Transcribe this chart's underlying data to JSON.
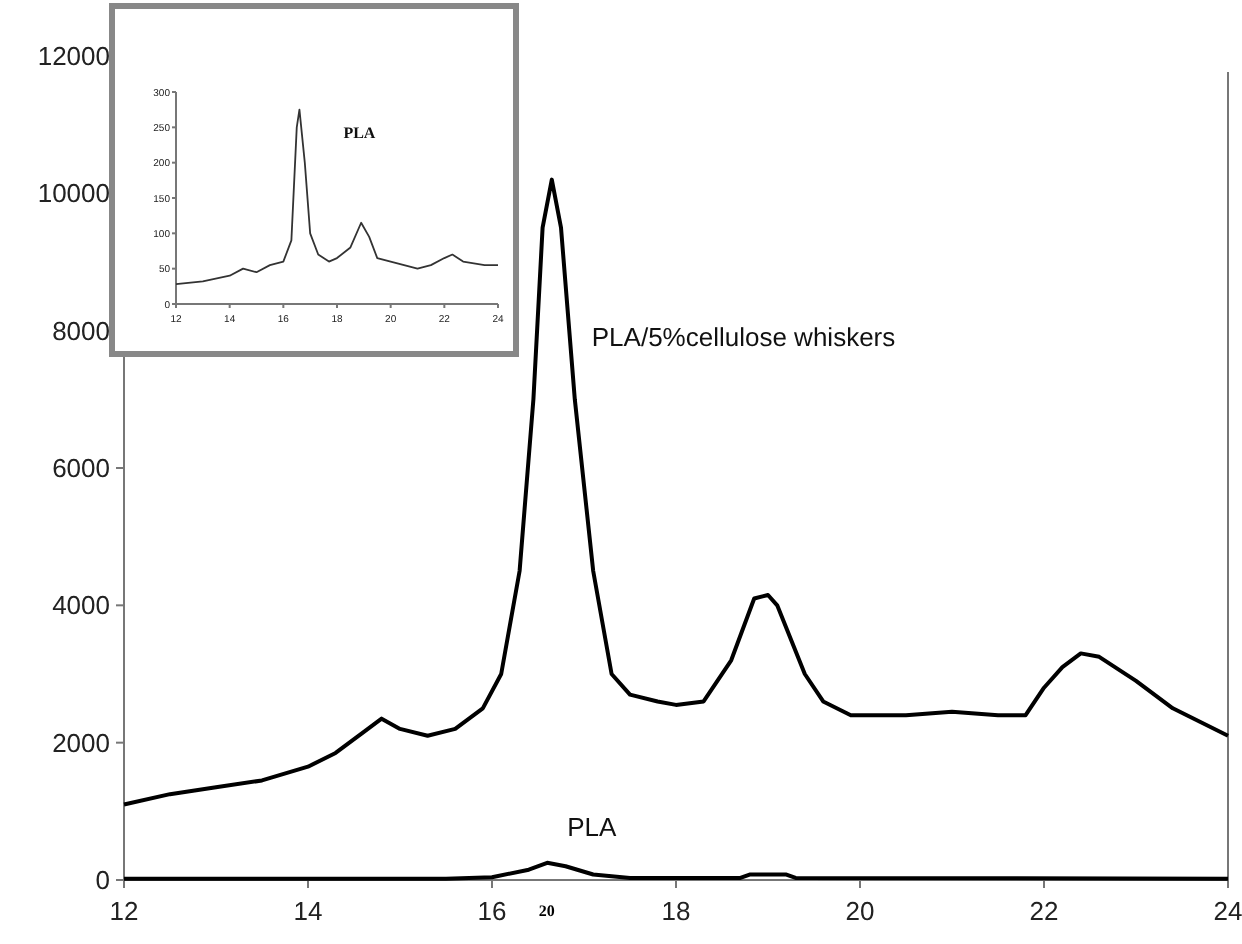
{
  "chart_data": [
    {
      "type": "line",
      "xlabel": "20",
      "xlim": [
        12,
        24
      ],
      "ylim": [
        0,
        12000
      ],
      "xticks": [
        12,
        14,
        16,
        18,
        20,
        22,
        24
      ],
      "yticks": [
        0,
        2000,
        4000,
        6000,
        8000,
        10000,
        12000
      ],
      "grid": false,
      "marker": "none",
      "line_style": "solid",
      "series": [
        {
          "name": "PLA/5%cellulose whiskers",
          "color": "#000000",
          "x": [
            12,
            12.5,
            13,
            13.5,
            14,
            14.3,
            14.6,
            14.8,
            15.0,
            15.3,
            15.6,
            15.9,
            16.1,
            16.3,
            16.45,
            16.55,
            16.65,
            16.75,
            16.9,
            17.1,
            17.3,
            17.5,
            17.8,
            18.0,
            18.3,
            18.6,
            18.85,
            19.0,
            19.1,
            19.4,
            19.6,
            19.9,
            20.5,
            21.0,
            21.5,
            21.8,
            22.0,
            22.2,
            22.4,
            22.6,
            23.0,
            23.4,
            23.7,
            24
          ],
          "values": [
            1100,
            1250,
            1350,
            1450,
            1650,
            1850,
            2150,
            2350,
            2200,
            2100,
            2200,
            2500,
            3000,
            4500,
            7000,
            9500,
            10200,
            9500,
            7000,
            4500,
            3000,
            2700,
            2600,
            2550,
            2600,
            3200,
            4100,
            4150,
            4000,
            3000,
            2600,
            2400,
            2400,
            2450,
            2400,
            2400,
            2800,
            3100,
            3300,
            3250,
            2900,
            2500,
            2300,
            2100
          ]
        },
        {
          "name": "PLA",
          "color": "#000000",
          "x": [
            12,
            15.5,
            16,
            16.4,
            16.6,
            16.8,
            17.1,
            17.5,
            18.7,
            18.8,
            19.2,
            19.3,
            24
          ],
          "values": [
            20,
            20,
            40,
            150,
            250,
            200,
            80,
            30,
            30,
            80,
            80,
            30,
            20
          ]
        }
      ]
    },
    {
      "type": "line",
      "xlim": [
        12,
        24
      ],
      "ylim": [
        0,
        300
      ],
      "xticks": [
        12,
        14,
        16,
        18,
        20,
        22,
        24
      ],
      "yticks": [
        0,
        50,
        100,
        150,
        200,
        250,
        300
      ],
      "grid": false,
      "marker": "none",
      "line_style": "solid",
      "series": [
        {
          "name": "PLA",
          "color": "#333333",
          "x": [
            12,
            13,
            14,
            14.5,
            15,
            15.5,
            16,
            16.3,
            16.5,
            16.6,
            16.8,
            17,
            17.3,
            17.7,
            18,
            18.5,
            18.9,
            19.2,
            19.5,
            20,
            20.5,
            21,
            21.5,
            22,
            22.3,
            22.7,
            23.5,
            24
          ],
          "values": [
            28,
            32,
            40,
            50,
            45,
            55,
            60,
            90,
            250,
            275,
            200,
            100,
            70,
            60,
            65,
            80,
            115,
            95,
            65,
            60,
            55,
            50,
            55,
            65,
            70,
            60,
            55,
            55
          ]
        }
      ]
    }
  ]
}
